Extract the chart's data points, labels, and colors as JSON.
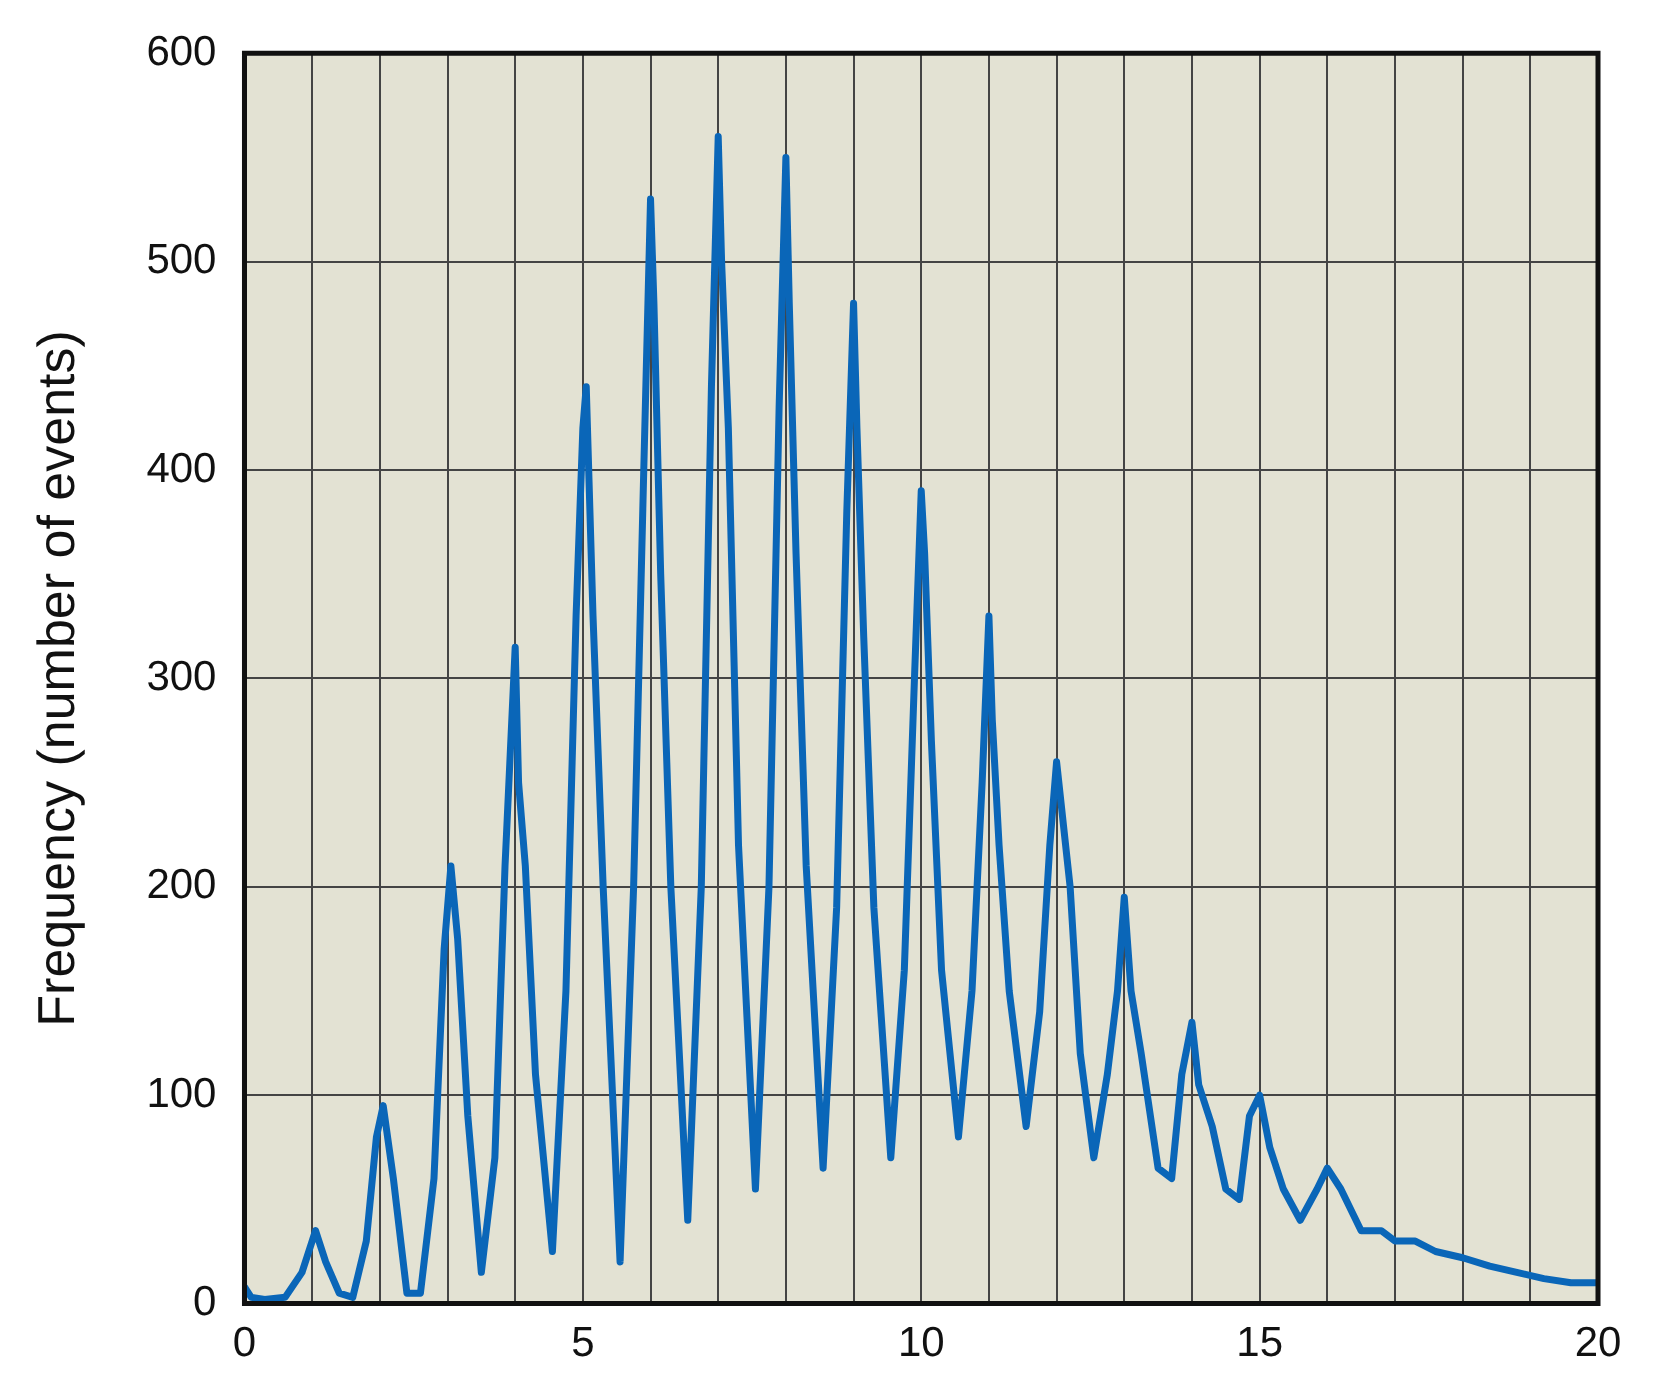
{
  "chart_data": {
    "type": "line",
    "ylabel": "Frequency (number of events)",
    "x": [
      0,
      0.1,
      0.3,
      0.6,
      0.85,
      1.0,
      1.05,
      1.2,
      1.4,
      1.6,
      1.8,
      1.95,
      2.05,
      2.2,
      2.4,
      2.6,
      2.8,
      2.95,
      3.05,
      3.15,
      3.3,
      3.5,
      3.7,
      3.85,
      4.0,
      4.05,
      4.15,
      4.3,
      4.55,
      4.75,
      4.9,
      5.0,
      5.05,
      5.15,
      5.3,
      5.55,
      5.75,
      5.9,
      6.0,
      6.05,
      6.15,
      6.3,
      6.55,
      6.75,
      6.9,
      7.0,
      7.05,
      7.15,
      7.3,
      7.55,
      7.75,
      7.9,
      8.0,
      8.05,
      8.15,
      8.3,
      8.55,
      8.75,
      8.9,
      9.0,
      9.05,
      9.15,
      9.3,
      9.55,
      9.75,
      9.9,
      10.0,
      10.05,
      10.15,
      10.3,
      10.55,
      10.75,
      10.9,
      11.0,
      11.05,
      11.15,
      11.3,
      11.55,
      11.75,
      11.9,
      12.0,
      12.1,
      12.2,
      12.35,
      12.55,
      12.75,
      12.9,
      13.0,
      13.1,
      13.25,
      13.5,
      13.7,
      13.85,
      14.0,
      14.1,
      14.3,
      14.5,
      14.7,
      14.85,
      15.0,
      15.15,
      15.35,
      15.6,
      15.85,
      16.0,
      16.2,
      16.5,
      16.8,
      17.0,
      17.3,
      17.6,
      18.0,
      18.4,
      18.8,
      19.2,
      19.6,
      20.0
    ],
    "series": [
      {
        "color": "#0a66b8",
        "values": [
          8,
          3,
          2,
          3,
          15,
          30,
          35,
          20,
          5,
          3,
          30,
          80,
          95,
          60,
          5,
          5,
          60,
          170,
          210,
          175,
          90,
          15,
          70,
          210,
          315,
          250,
          210,
          110,
          25,
          150,
          330,
          420,
          440,
          330,
          200,
          20,
          200,
          400,
          530,
          480,
          350,
          200,
          40,
          200,
          440,
          560,
          500,
          420,
          220,
          55,
          200,
          430,
          550,
          480,
          360,
          210,
          65,
          190,
          380,
          480,
          420,
          320,
          190,
          70,
          160,
          300,
          390,
          360,
          270,
          160,
          80,
          150,
          250,
          330,
          280,
          220,
          150,
          85,
          140,
          220,
          260,
          230,
          200,
          120,
          70,
          110,
          150,
          195,
          150,
          120,
          65,
          60,
          110,
          135,
          105,
          85,
          55,
          50,
          90,
          100,
          75,
          55,
          40,
          55,
          65,
          55,
          35,
          35,
          30,
          30,
          25,
          22,
          18,
          15,
          12,
          10,
          10
        ]
      }
    ],
    "xlim": [
      0,
      20
    ],
    "xticks": [
      0,
      {
        "value": 1,
        "label": null
      },
      {
        "value": 2,
        "label": null
      },
      {
        "value": 3,
        "label": null
      },
      {
        "value": 4,
        "label": null
      },
      5,
      {
        "value": 6,
        "label": null
      },
      {
        "value": 7,
        "label": null
      },
      {
        "value": 8,
        "label": null
      },
      {
        "value": 9,
        "label": null
      },
      10,
      {
        "value": 11,
        "label": null
      },
      {
        "value": 12,
        "label": null
      },
      {
        "value": 13,
        "label": null
      },
      {
        "value": 14,
        "label": null
      },
      15,
      {
        "value": 16,
        "label": null
      },
      {
        "value": 17,
        "label": null
      },
      {
        "value": 18,
        "label": null
      },
      {
        "value": 19,
        "label": null
      },
      20
    ],
    "ylim": [
      0,
      600
    ],
    "yticks": [
      0,
      100,
      200,
      300,
      400,
      500,
      600
    ],
    "grid": true,
    "legend": false,
    "marker": "none",
    "line_style": "solid"
  }
}
